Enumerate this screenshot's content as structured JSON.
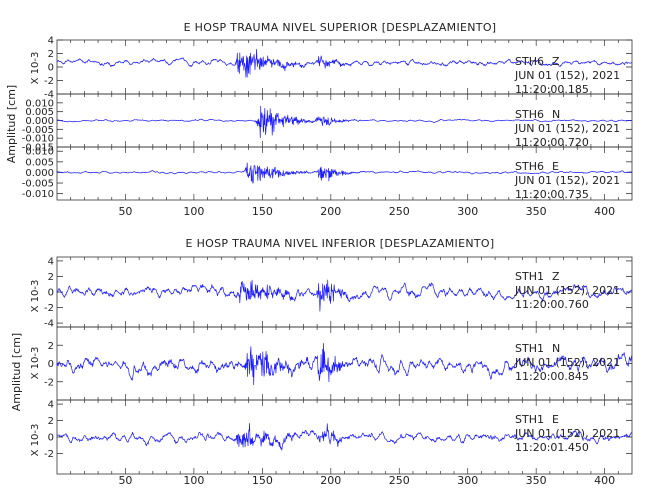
{
  "chart_data": [
    {
      "type": "line",
      "title": "E HOSP TRAUMA NIVEL SUPERIOR [DESPLAZAMIENTO]",
      "ylabel": "Amplitud [cm]",
      "xlim": [
        0,
        420
      ],
      "xticks": [
        50,
        100,
        150,
        200,
        250,
        300,
        350,
        400
      ],
      "series": [
        {
          "station": "STH6",
          "component": "Z",
          "date": "JUN 01 (152), 2021",
          "time": "11:20:00.185",
          "scale_label": "X 10-3",
          "ylim": [
            -4,
            4
          ],
          "yticks": [
            "4",
            "2",
            "0",
            "-2",
            "-4"
          ],
          "baseline": 0.7,
          "noise": 0.35,
          "color": "#1a1aff",
          "events": [
            {
              "t": 133,
              "amp": 3.3,
              "width": 5,
              "dur": 18
            },
            {
              "t": 192,
              "amp": 1.3,
              "width": 5,
              "dur": 8
            }
          ]
        },
        {
          "station": "STH6",
          "component": "N",
          "date": "JUN 01 (152), 2021",
          "time": "11:20:00.720",
          "scale_label": "",
          "ylim": [
            -0.015,
            0.015
          ],
          "yticks": [
            "0.010",
            "0.005",
            "0.000",
            "-0.005",
            "-0.010",
            "-0.015"
          ],
          "baseline": 0.0,
          "noise": 0.0004,
          "color": "#1a1aff",
          "events": [
            {
              "t": 148,
              "amp": 0.012,
              "width": 9,
              "dur": 14
            },
            {
              "t": 192,
              "amp": 0.005,
              "width": 5,
              "dur": 8
            }
          ]
        },
        {
          "station": "STH6",
          "component": "E",
          "date": "JUN 01 (152), 2021",
          "time": "11:20:00.735",
          "scale_label": "",
          "ylim": [
            -0.013,
            0.012
          ],
          "yticks": [
            "0.010",
            "0.005",
            "0.000",
            "-0.005",
            "-0.010"
          ],
          "baseline": 0.0,
          "noise": 0.0004,
          "color": "#1a1aff",
          "events": [
            {
              "t": 140,
              "amp": 0.008,
              "width": 9,
              "dur": 14
            },
            {
              "t": 192,
              "amp": 0.007,
              "width": 5,
              "dur": 8
            }
          ]
        }
      ]
    },
    {
      "type": "line",
      "title": "E HOSP TRAUMA NIVEL INFERIOR [DESPLAZAMIENTO]",
      "ylabel": "Amplitud [cm]",
      "xlim": [
        0,
        420
      ],
      "xticks": [
        50,
        100,
        150,
        200,
        250,
        300,
        350,
        400
      ],
      "series": [
        {
          "station": "STH1",
          "component": "Z",
          "date": "JUN 01 (152), 2021",
          "time": "11:20:00.760",
          "scale_label": "X 10-3",
          "ylim": [
            -4.5,
            4.5
          ],
          "yticks": [
            "4",
            "2",
            "0",
            "-2",
            "-4"
          ],
          "baseline": 0.0,
          "noise": 0.6,
          "color": "#1a1aff",
          "events": [
            {
              "t": 135,
              "amp": 2.6,
              "width": 9,
              "dur": 16
            },
            {
              "t": 192,
              "amp": 3.3,
              "width": 5,
              "dur": 8
            }
          ]
        },
        {
          "station": "STH1",
          "component": "N",
          "date": "JUN 01 (152), 2021",
          "time": "11:20:00.845",
          "scale_label": "X 10-3",
          "ylim": [
            -4.0,
            4.0
          ],
          "yticks": [
            "2",
            "0",
            "-2"
          ],
          "baseline": 0.0,
          "noise": 0.7,
          "color": "#1a1aff",
          "events": [
            {
              "t": 140,
              "amp": 2.8,
              "width": 10,
              "dur": 16
            },
            {
              "t": 192,
              "amp": 2.6,
              "width": 5,
              "dur": 8
            }
          ]
        },
        {
          "station": "STH1",
          "component": "E",
          "date": "JUN 01 (152), 2021",
          "time": "11:20:01.450",
          "scale_label": "X 10-3",
          "ylim": [
            -4.5,
            4.5
          ],
          "yticks": [
            "4",
            "2",
            "0",
            "-2"
          ],
          "baseline": 0.0,
          "noise": 0.45,
          "color": "#1a1aff",
          "events": [
            {
              "t": 133,
              "amp": 3.0,
              "width": 5,
              "dur": 16
            },
            {
              "t": 192,
              "amp": 1.6,
              "width": 5,
              "dur": 8
            }
          ]
        }
      ]
    }
  ]
}
